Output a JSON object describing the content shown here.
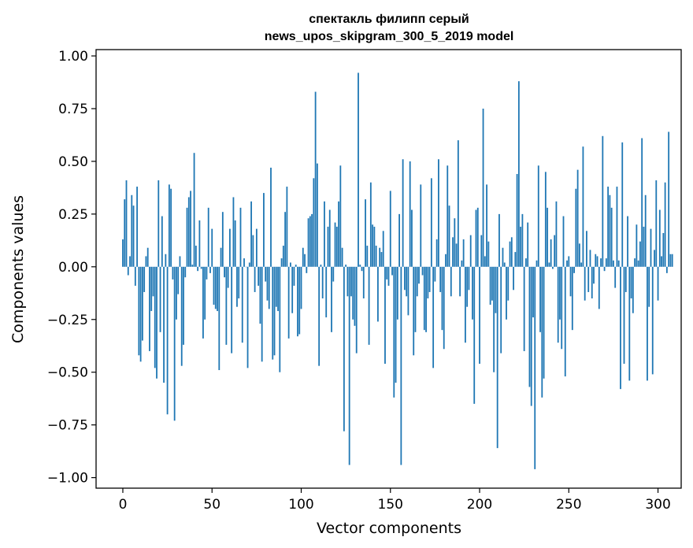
{
  "chart_data": {
    "type": "bar",
    "title_line1": "спектакль филипп серый",
    "title_line2": "news_upos_skipgram_300_5_2019 model",
    "xlabel": "Vector components",
    "ylabel": "Components values",
    "xlim": [
      -15,
      313
    ],
    "ylim": [
      -1.05,
      1.03
    ],
    "bar_color": "#1f77b4",
    "x_ticks": [
      0,
      50,
      100,
      150,
      200,
      250,
      300
    ],
    "x_tick_labels": [
      "0",
      "50",
      "100",
      "150",
      "200",
      "250",
      "300"
    ],
    "y_ticks": [
      1.0,
      0.75,
      0.5,
      0.25,
      0.0,
      -0.25,
      -0.5,
      -0.75,
      -1.0
    ],
    "y_tick_labels": [
      "1.00",
      "0.75",
      "0.50",
      "0.25",
      "0.00",
      "−0.25",
      "−0.50",
      "−0.75",
      "−1.00"
    ],
    "values": [
      0.13,
      0.32,
      0.41,
      -0.04,
      0.05,
      0.34,
      0.29,
      -0.09,
      0.38,
      -0.42,
      -0.45,
      -0.35,
      -0.12,
      0.05,
      0.09,
      -0.4,
      -0.21,
      -0.14,
      -0.48,
      -0.53,
      0.41,
      -0.31,
      0.24,
      -0.55,
      0.06,
      -0.7,
      0.39,
      0.37,
      -0.06,
      -0.73,
      -0.25,
      -0.13,
      0.05,
      -0.47,
      -0.37,
      -0.05,
      0.28,
      0.33,
      0.36,
      0.01,
      0.54,
      0.1,
      -0.02,
      0.22,
      -0.01,
      -0.34,
      -0.25,
      -0.06,
      0.28,
      -0.03,
      0.18,
      -0.18,
      -0.2,
      -0.21,
      -0.49,
      0.09,
      0.26,
      -0.05,
      -0.37,
      -0.1,
      0.18,
      -0.41,
      0.33,
      0.22,
      -0.19,
      -0.15,
      0.28,
      -0.36,
      0.04,
      0.0,
      -0.48,
      0.02,
      0.31,
      0.15,
      -0.12,
      0.18,
      -0.09,
      -0.27,
      -0.45,
      0.35,
      -0.07,
      -0.16,
      -0.2,
      0.47,
      -0.44,
      -0.42,
      -0.19,
      -0.21,
      -0.5,
      0.04,
      0.1,
      0.26,
      0.38,
      -0.34,
      0.02,
      -0.22,
      -0.09,
      0.01,
      -0.33,
      -0.32,
      -0.2,
      0.09,
      0.06,
      -0.03,
      0.23,
      0.24,
      0.25,
      0.42,
      0.83,
      0.49,
      -0.47,
      0.01,
      -0.15,
      0.31,
      -0.24,
      0.19,
      0.27,
      -0.31,
      -0.07,
      0.21,
      0.19,
      0.31,
      0.48,
      0.09,
      -0.78,
      0.01,
      -0.14,
      -0.94,
      -0.14,
      -0.25,
      -0.28,
      -0.41,
      0.92,
      0.01,
      -0.02,
      -0.15,
      0.32,
      0.1,
      -0.37,
      0.4,
      0.2,
      0.19,
      0.1,
      -0.26,
      0.09,
      0.07,
      0.17,
      -0.46,
      -0.06,
      -0.09,
      0.36,
      -0.04,
      -0.62,
      -0.55,
      -0.25,
      0.25,
      -0.94,
      0.51,
      -0.11,
      -0.14,
      -0.23,
      0.5,
      0.27,
      -0.42,
      -0.31,
      -0.14,
      -0.08,
      0.39,
      -0.04,
      -0.3,
      -0.31,
      -0.15,
      -0.12,
      0.42,
      -0.48,
      -0.07,
      0.13,
      0.51,
      -0.12,
      -0.3,
      -0.39,
      0.06,
      0.48,
      0.29,
      -0.14,
      0.14,
      0.23,
      0.11,
      0.6,
      -0.14,
      0.03,
      0.13,
      -0.36,
      -0.19,
      -0.11,
      0.15,
      -0.25,
      -0.65,
      0.27,
      0.28,
      -0.46,
      0.15,
      0.75,
      0.05,
      0.39,
      0.12,
      -0.18,
      -0.16,
      -0.5,
      -0.22,
      -0.86,
      0.25,
      -0.41,
      0.09,
      0.02,
      -0.25,
      -0.16,
      0.12,
      0.14,
      -0.11,
      0.07,
      0.44,
      0.88,
      0.19,
      0.25,
      -0.4,
      0.04,
      0.21,
      -0.57,
      -0.66,
      -0.24,
      -0.96,
      0.03,
      0.48,
      -0.31,
      -0.62,
      -0.53,
      0.45,
      0.28,
      0.02,
      0.13,
      -0.01,
      0.15,
      0.31,
      -0.36,
      -0.25,
      -0.39,
      0.24,
      -0.52,
      0.03,
      0.05,
      -0.14,
      -0.3,
      -0.03,
      0.37,
      0.46,
      0.11,
      0.02,
      0.57,
      -0.16,
      0.17,
      -0.12,
      0.08,
      -0.15,
      -0.08,
      0.06,
      0.05,
      -0.2,
      0.04,
      0.62,
      -0.02,
      0.04,
      0.38,
      0.34,
      0.28,
      0.03,
      -0.1,
      0.38,
      0.03,
      -0.58,
      0.59,
      -0.46,
      -0.12,
      0.24,
      -0.54,
      -0.15,
      -0.22,
      0.04,
      0.2,
      0.03,
      0.12,
      0.61,
      0.19,
      0.34,
      -0.54,
      -0.19,
      0.18,
      -0.51,
      0.08,
      0.41,
      -0.16,
      0.27,
      0.05,
      0.16,
      0.4,
      -0.03,
      0.64,
      0.06,
      0.06
    ]
  }
}
